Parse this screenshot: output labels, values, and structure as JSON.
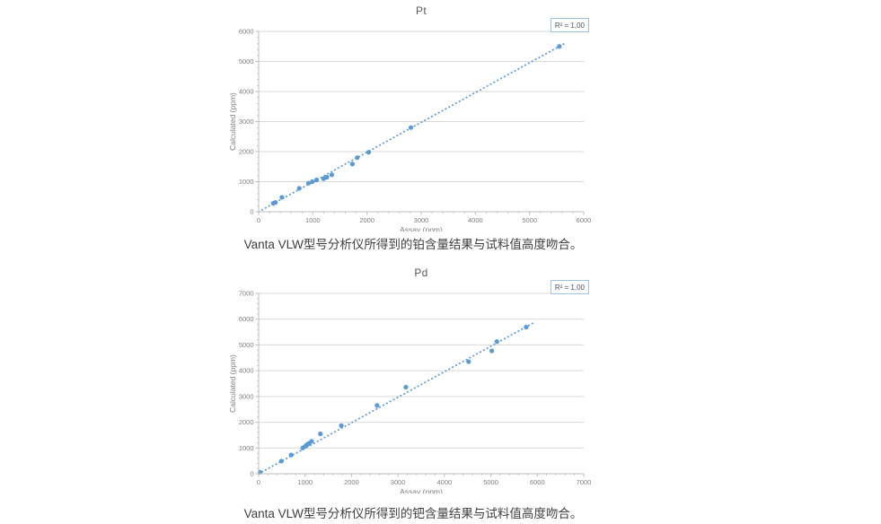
{
  "colors": {
    "point": "#5B9BD5",
    "trendline": "#5B9BD5",
    "grid": "#D9D9D9",
    "axis": "#BFBFBF",
    "tick_label": "#7F7F7F",
    "axis_title": "#7F7F7F",
    "chart_title": "#595959",
    "legend_border": "#9DC3E6",
    "legend_text": "#44546A",
    "caption_text": "#3F3F3F"
  },
  "chart_data": [
    {
      "type": "scatter",
      "title": "Pt",
      "legend": "R² = 1,00",
      "legend_position": "top-right",
      "xlabel": "Assay (ppm)",
      "ylabel": "Calculated (ppm)",
      "xlim": [
        0,
        6000
      ],
      "ylim": [
        0,
        6000
      ],
      "xticks": [
        0,
        1000,
        2000,
        3000,
        4000,
        5000,
        6000
      ],
      "yticks": [
        0,
        1000,
        2000,
        3000,
        4000,
        5000,
        6000
      ],
      "minor_tick_step": 200,
      "grid": "horizontal",
      "points": [
        [
          270,
          280
        ],
        [
          310,
          310
        ],
        [
          430,
          480
        ],
        [
          750,
          780
        ],
        [
          920,
          950
        ],
        [
          990,
          1000
        ],
        [
          1070,
          1060
        ],
        [
          1200,
          1100
        ],
        [
          1260,
          1150
        ],
        [
          1350,
          1230
        ],
        [
          1730,
          1590
        ],
        [
          1820,
          1800
        ],
        [
          2030,
          1980
        ],
        [
          2810,
          2800
        ],
        [
          5550,
          5500
        ]
      ],
      "trendline": {
        "from": [
          0,
          0
        ],
        "to": [
          5650,
          5600
        ],
        "style": "dotted"
      },
      "caption": "Vanta VLW型号分析仪所得到的铂含量结果与试料值高度吻合。"
    },
    {
      "type": "scatter",
      "title": "Pd",
      "legend": "R² = 1,00",
      "legend_position": "top-right",
      "xlabel": "Assay (ppm)",
      "ylabel": "Calculated (ppm)",
      "xlim": [
        0,
        7000
      ],
      "ylim": [
        0,
        7000
      ],
      "xticks": [
        0,
        1000,
        2000,
        3000,
        4000,
        5000,
        6000,
        7000
      ],
      "yticks": [
        0,
        1000,
        2000,
        3000,
        4000,
        5000,
        6000,
        7000
      ],
      "minor_tick_step": 200,
      "grid": "horizontal",
      "points": [
        [
          30,
          60
        ],
        [
          490,
          490
        ],
        [
          700,
          730
        ],
        [
          950,
          1000
        ],
        [
          1000,
          1060
        ],
        [
          1030,
          1110
        ],
        [
          1060,
          1150
        ],
        [
          1090,
          1190
        ],
        [
          1140,
          1260
        ],
        [
          1330,
          1550
        ],
        [
          1780,
          1870
        ],
        [
          2550,
          2650
        ],
        [
          3170,
          3360
        ],
        [
          4520,
          4350
        ],
        [
          5020,
          4770
        ],
        [
          5130,
          5130
        ],
        [
          5760,
          5690
        ]
      ],
      "trendline": {
        "from": [
          0,
          0
        ],
        "to": [
          5900,
          5840
        ],
        "style": "dotted"
      },
      "caption": "Vanta VLW型号分析仪所得到的钯含量结果与试料值高度吻合。"
    }
  ]
}
